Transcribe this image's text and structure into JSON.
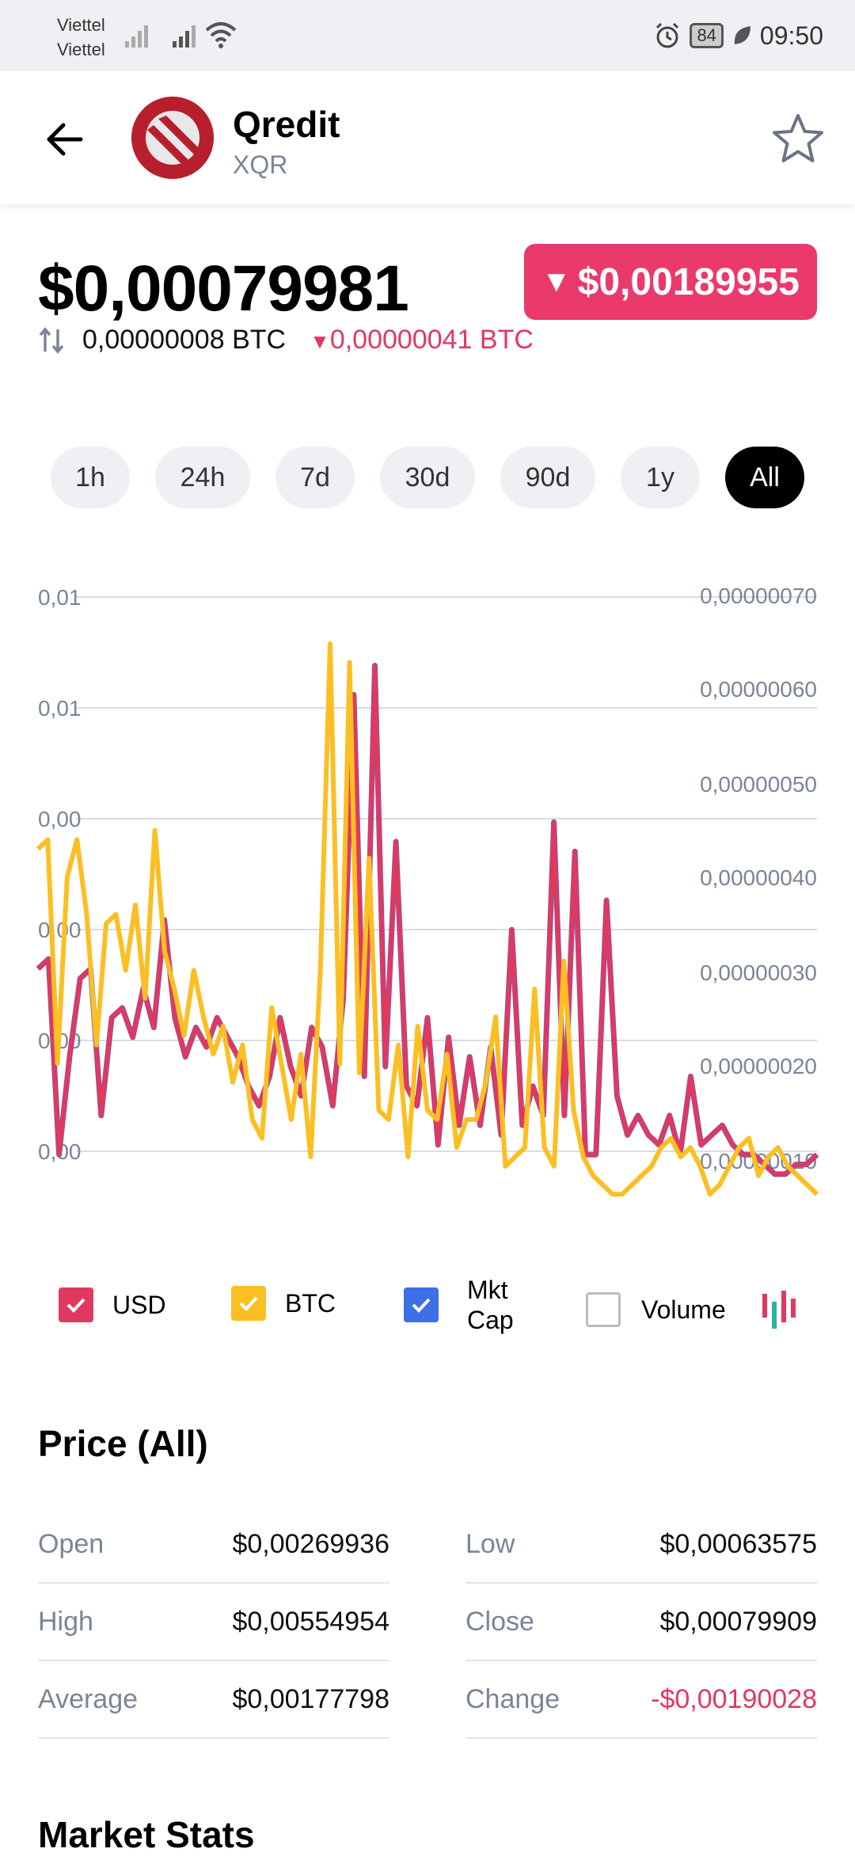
{
  "status_bar": {
    "carrier_1": "Viettel",
    "carrier_2": "Viettel",
    "battery": "84",
    "time": "09:50"
  },
  "header": {
    "coin_name": "Qredit",
    "coin_symbol": "XQR",
    "back_icon": "arrow-left-icon",
    "favorite_icon": "star-outline-icon"
  },
  "price": {
    "usd": "$0,00079981",
    "change_usd": "$0,00189955",
    "btc": "0,00000008 BTC",
    "change_btc": "0,00000041 BTC"
  },
  "periods": {
    "items": [
      "1h",
      "24h",
      "7d",
      "30d",
      "90d",
      "1y",
      "All"
    ],
    "selected": "All"
  },
  "chart_data": {
    "type": "line",
    "left_axis_ticks": [
      "0,01",
      "0,01",
      "0,00",
      "0,00",
      "0,00",
      "0,00"
    ],
    "right_axis_ticks": [
      "0,00000070",
      "0,00000060",
      "0,00000050",
      "0,00000040",
      "0,00000030",
      "0,00000020",
      "0,00000010"
    ],
    "y_right_range": [
      5e-08,
      7e-07
    ],
    "grid": true,
    "series": [
      {
        "name": "BTC",
        "color": "#fbbf24",
        "values": [
          4.3e-07,
          4.4e-07,
          2e-07,
          4e-07,
          4.4e-07,
          3.6e-07,
          2.2e-07,
          3.5e-07,
          3.6e-07,
          3e-07,
          3.7e-07,
          2.7e-07,
          4.5e-07,
          3.2e-07,
          2.8e-07,
          2.3e-07,
          3e-07,
          2.5e-07,
          2.1e-07,
          2.4e-07,
          1.8e-07,
          2.2e-07,
          1.4e-07,
          1.2e-07,
          2.6e-07,
          2e-07,
          1.4e-07,
          2.1e-07,
          1e-07,
          3e-07,
          6.5e-07,
          2e-07,
          6.3e-07,
          1.9e-07,
          4.2e-07,
          1.5e-07,
          1.4e-07,
          2.2e-07,
          1e-07,
          2.4e-07,
          1.5e-07,
          1.4e-07,
          2.1e-07,
          1.1e-07,
          1.4e-07,
          1.4e-07,
          1.8e-07,
          2.5e-07,
          9e-08,
          1e-07,
          1.1e-07,
          2.8e-07,
          1.1e-07,
          9e-08,
          3.1e-07,
          1.5e-07,
          1e-07,
          8e-08,
          7e-08,
          6e-08,
          6e-08,
          7e-08,
          8e-08,
          9e-08,
          1.1e-07,
          1.2e-07,
          1e-07,
          1.1e-07,
          9e-08,
          6e-08,
          7e-08,
          9e-08,
          1.1e-07,
          1.2e-07,
          8e-08,
          1e-07,
          1.1e-07,
          9e-08,
          8e-08,
          7e-08,
          6e-08
        ]
      },
      {
        "name": "USD",
        "color": "#e0395f",
        "values": [
          0.0027,
          0.0028,
          0.0008,
          0.0018,
          0.0026,
          0.0027,
          0.0012,
          0.0022,
          0.0023,
          0.002,
          0.0025,
          0.0021,
          0.0032,
          0.0022,
          0.0018,
          0.0021,
          0.0019,
          0.0022,
          0.002,
          0.0018,
          0.0015,
          0.0013,
          0.0016,
          0.0022,
          0.0017,
          0.0014,
          0.0021,
          0.0019,
          0.0013,
          0.0024,
          0.0055,
          0.0016,
          0.0058,
          0.0017,
          0.004,
          0.0015,
          0.0013,
          0.0022,
          0.0009,
          0.002,
          0.0011,
          0.0018,
          0.0011,
          0.0019,
          0.001,
          0.0031,
          0.0011,
          0.0015,
          0.0012,
          0.0042,
          0.0012,
          0.0039,
          0.0008,
          0.0008,
          0.0034,
          0.0014,
          0.001,
          0.0012,
          0.001,
          0.0009,
          0.0012,
          0.0008,
          0.0016,
          0.0009,
          0.001,
          0.0011,
          0.0009,
          0.0008,
          0.0008,
          0.0007,
          0.0006,
          0.0006,
          0.0007,
          0.0007,
          0.0008
        ]
      },
      {
        "name": "Mkt Cap",
        "color": "#3d6fe6",
        "values": [
          0.0027,
          0.0028,
          0.0008,
          0.0018,
          0.0026,
          0.0027,
          0.0012,
          0.0022,
          0.0023,
          0.002,
          0.0025,
          0.0021,
          0.0032,
          0.0022,
          0.0018,
          0.0021,
          0.0019,
          0.0022,
          0.002,
          0.0018,
          0.0015,
          0.0013,
          0.0016,
          0.0022,
          0.0017,
          0.0014,
          0.0021,
          0.0019,
          0.0013,
          0.0024,
          0.0055,
          0.0016,
          0.0058,
          0.0017,
          0.004,
          0.0015,
          0.0013,
          0.0022,
          0.0009,
          0.002,
          0.0011,
          0.0018,
          0.0011,
          0.0019,
          0.001,
          0.0031,
          0.0011,
          0.0015,
          0.0012,
          0.0042,
          0.0012,
          0.0039,
          0.0008,
          0.0008,
          0.0034,
          0.0014,
          0.001,
          0.0012,
          0.001,
          0.0009,
          0.0012,
          0.0008,
          0.0016,
          0.0009,
          0.001,
          0.0011,
          0.0009,
          0.0008,
          0.0008,
          0.0007,
          0.0006,
          0.0006,
          0.0007,
          0.0007,
          0.0008
        ]
      }
    ],
    "y_left_range": [
      0.0003,
      0.0065
    ]
  },
  "legend": {
    "usd": "USD",
    "btc": "BTC",
    "mktcap_line1": "Mkt",
    "mktcap_line2": "Cap",
    "volume": "Volume"
  },
  "price_all": {
    "title": "Price (All)",
    "open_label": "Open",
    "open_value": "$0,00269936",
    "high_label": "High",
    "high_value": "$0,00554954",
    "average_label": "Average",
    "average_value": "$0,00177798",
    "low_label": "Low",
    "low_value": "$0,00063575",
    "close_label": "Close",
    "close_value": "$0,00079909",
    "change_label": "Change",
    "change_value": "-$0,00190028"
  },
  "market_stats": {
    "title": "Market Stats"
  }
}
